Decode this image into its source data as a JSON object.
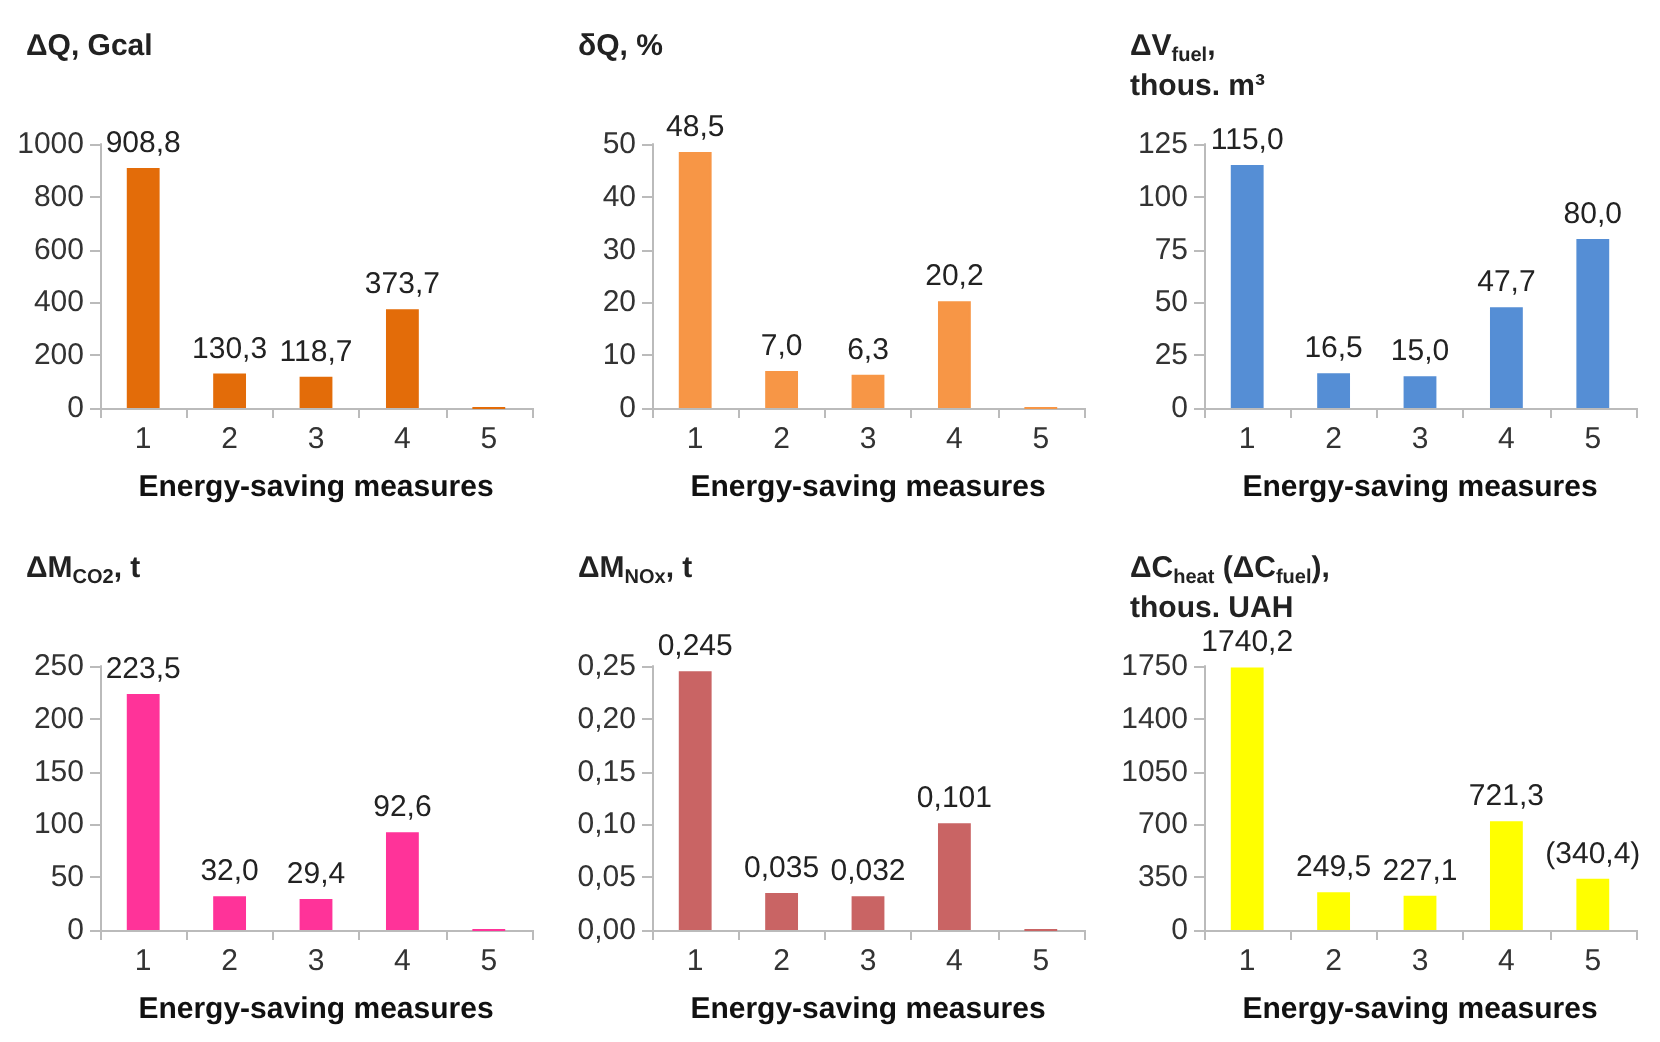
{
  "chart_data": [
    {
      "type": "bar",
      "ylabel": "ΔQ, Gcal",
      "xlabel": "Energy-saving measures",
      "categories": [
        "1",
        "2",
        "3",
        "4",
        "5"
      ],
      "values": [
        908.8,
        130.3,
        118.7,
        373.7,
        0
      ],
      "value_labels": [
        "908,8",
        "130,3",
        "118,7",
        "373,7",
        null
      ],
      "color": "#e36c09",
      "ylim": [
        0,
        1000
      ],
      "yticks": [
        0,
        200,
        400,
        600,
        800,
        1000
      ]
    },
    {
      "type": "bar",
      "ylabel": "δQ, %",
      "xlabel": "Energy-saving measures",
      "categories": [
        "1",
        "2",
        "3",
        "4",
        "5"
      ],
      "values": [
        48.5,
        7.0,
        6.3,
        20.2,
        0
      ],
      "value_labels": [
        "48,5",
        "7,0",
        "6,3",
        "20,2",
        null
      ],
      "color": "#f79646",
      "ylim": [
        0,
        50
      ],
      "yticks": [
        0,
        10,
        20,
        30,
        40,
        50
      ]
    },
    {
      "type": "bar",
      "ylabel": "ΔV$_{fuel}$,\nthous. m³",
      "xlabel": "Energy-saving measures",
      "categories": [
        "1",
        "2",
        "3",
        "4",
        "5"
      ],
      "values": [
        115.0,
        16.5,
        15.0,
        47.7,
        80.0
      ],
      "value_labels": [
        "115,0",
        "16,5",
        "15,0",
        "47,7",
        "80,0"
      ],
      "color": "#558ed5",
      "ylim": [
        0,
        125
      ],
      "yticks": [
        0,
        25,
        50,
        75,
        100,
        125
      ]
    },
    {
      "type": "bar",
      "ylabel": "ΔM$_{CO2}$, t",
      "xlabel": "Energy-saving measures",
      "categories": [
        "1",
        "2",
        "3",
        "4",
        "5"
      ],
      "values": [
        223.5,
        32.0,
        29.4,
        92.6,
        0
      ],
      "value_labels": [
        "223,5",
        "32,0",
        "29,4",
        "92,6",
        null
      ],
      "color": "#ff3399",
      "ylim": [
        0,
        250
      ],
      "yticks": [
        0,
        50,
        100,
        150,
        200,
        250
      ]
    },
    {
      "type": "bar",
      "ylabel": "ΔM$_{NOx}$, t",
      "xlabel": "Energy-saving measures",
      "categories": [
        "1",
        "2",
        "3",
        "4",
        "5"
      ],
      "values": [
        0.245,
        0.035,
        0.032,
        0.101,
        0
      ],
      "value_labels": [
        "0,245",
        "0,035",
        "0,032",
        "0,101",
        null
      ],
      "color": "#c96464",
      "ylim": [
        0,
        0.25
      ],
      "yticks": [
        {
          "value": 0,
          "label": "0,00"
        },
        {
          "value": 0.05,
          "label": "0,05"
        },
        {
          "value": 0.1,
          "label": "0,10"
        },
        {
          "value": 0.15,
          "label": "0,15"
        },
        {
          "value": 0.2,
          "label": "0,20"
        },
        {
          "value": 0.25,
          "label": "0,25"
        }
      ]
    },
    {
      "type": "bar",
      "ylabel": "ΔC$_{heat}$ (ΔC$_{fuel}$),\nthous. UAH",
      "xlabel": "Energy-saving measures",
      "categories": [
        "1",
        "2",
        "3",
        "4",
        "5"
      ],
      "values": [
        1740.2,
        249.5,
        227.1,
        721.3,
        340.4
      ],
      "value_labels": [
        "1740,2",
        "249,5",
        "227,1",
        "721,3",
        "(340,4)"
      ],
      "color": "#ffff00",
      "ylim": [
        0,
        1750
      ],
      "yticks": [
        0,
        350,
        700,
        1050,
        1400,
        1750
      ]
    }
  ]
}
